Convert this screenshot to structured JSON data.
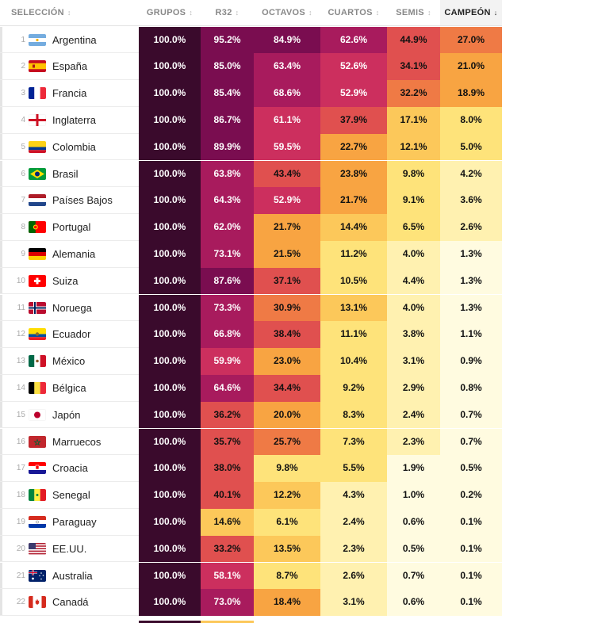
{
  "headers": {
    "team": "SELECCIÓN",
    "cols": [
      "GRUPOS",
      "R32",
      "OCTAVOS",
      "CUARTOS",
      "SEMIS",
      "CAMPEÓN"
    ],
    "sort_neutral": "↕",
    "sort_active": "↓"
  },
  "rows": [
    {
      "rank": "1",
      "flag": "argentina-flag-icon",
      "name": "Argentina",
      "v": [
        "100.0%",
        "95.2%",
        "84.9%",
        "62.6%",
        "44.9%",
        "27.0%"
      ]
    },
    {
      "rank": "2",
      "flag": "spain-flag-icon",
      "name": "España",
      "v": [
        "100.0%",
        "85.0%",
        "63.4%",
        "52.6%",
        "34.1%",
        "21.0%"
      ]
    },
    {
      "rank": "3",
      "flag": "france-flag-icon",
      "name": "Francia",
      "v": [
        "100.0%",
        "85.4%",
        "68.6%",
        "52.9%",
        "32.2%",
        "18.9%"
      ]
    },
    {
      "rank": "4",
      "flag": "england-flag-icon",
      "name": "Inglaterra",
      "v": [
        "100.0%",
        "86.7%",
        "61.1%",
        "37.9%",
        "17.1%",
        "8.0%"
      ]
    },
    {
      "rank": "5",
      "flag": "colombia-flag-icon",
      "name": "Colombia",
      "v": [
        "100.0%",
        "89.9%",
        "59.5%",
        "22.7%",
        "12.1%",
        "5.0%"
      ]
    },
    {
      "rank": "6",
      "flag": "brazil-flag-icon",
      "name": "Brasil",
      "v": [
        "100.0%",
        "63.8%",
        "43.4%",
        "23.8%",
        "9.8%",
        "4.2%"
      ]
    },
    {
      "rank": "7",
      "flag": "netherlands-flag-icon",
      "name": "Países Bajos",
      "v": [
        "100.0%",
        "64.3%",
        "52.9%",
        "21.7%",
        "9.1%",
        "3.6%"
      ]
    },
    {
      "rank": "8",
      "flag": "portugal-flag-icon",
      "name": "Portugal",
      "v": [
        "100.0%",
        "62.0%",
        "21.7%",
        "14.4%",
        "6.5%",
        "2.6%"
      ]
    },
    {
      "rank": "9",
      "flag": "germany-flag-icon",
      "name": "Alemania",
      "v": [
        "100.0%",
        "73.1%",
        "21.5%",
        "11.2%",
        "4.0%",
        "1.3%"
      ]
    },
    {
      "rank": "10",
      "flag": "switzerland-flag-icon",
      "name": "Suiza",
      "v": [
        "100.0%",
        "87.6%",
        "37.1%",
        "10.5%",
        "4.4%",
        "1.3%"
      ]
    },
    {
      "rank": "11",
      "flag": "norway-flag-icon",
      "name": "Noruega",
      "v": [
        "100.0%",
        "73.3%",
        "30.9%",
        "13.1%",
        "4.0%",
        "1.3%"
      ]
    },
    {
      "rank": "12",
      "flag": "ecuador-flag-icon",
      "name": "Ecuador",
      "v": [
        "100.0%",
        "66.8%",
        "38.4%",
        "11.1%",
        "3.8%",
        "1.1%"
      ]
    },
    {
      "rank": "13",
      "flag": "mexico-flag-icon",
      "name": "México",
      "v": [
        "100.0%",
        "59.9%",
        "23.0%",
        "10.4%",
        "3.1%",
        "0.9%"
      ]
    },
    {
      "rank": "14",
      "flag": "belgium-flag-icon",
      "name": "Bélgica",
      "v": [
        "100.0%",
        "64.6%",
        "34.4%",
        "9.2%",
        "2.9%",
        "0.8%"
      ]
    },
    {
      "rank": "15",
      "flag": "japan-flag-icon",
      "name": "Japón",
      "v": [
        "100.0%",
        "36.2%",
        "20.0%",
        "8.3%",
        "2.4%",
        "0.7%"
      ]
    },
    {
      "rank": "16",
      "flag": "morocco-flag-icon",
      "name": "Marruecos",
      "v": [
        "100.0%",
        "35.7%",
        "25.7%",
        "7.3%",
        "2.3%",
        "0.7%"
      ]
    },
    {
      "rank": "17",
      "flag": "croatia-flag-icon",
      "name": "Croacia",
      "v": [
        "100.0%",
        "38.0%",
        "9.8%",
        "5.5%",
        "1.9%",
        "0.5%"
      ]
    },
    {
      "rank": "18",
      "flag": "senegal-flag-icon",
      "name": "Senegal",
      "v": [
        "100.0%",
        "40.1%",
        "12.2%",
        "4.3%",
        "1.0%",
        "0.2%"
      ]
    },
    {
      "rank": "19",
      "flag": "paraguay-flag-icon",
      "name": "Paraguay",
      "v": [
        "100.0%",
        "14.6%",
        "6.1%",
        "2.4%",
        "0.6%",
        "0.1%"
      ]
    },
    {
      "rank": "20",
      "flag": "usa-flag-icon",
      "name": "EE.UU.",
      "v": [
        "100.0%",
        "33.2%",
        "13.5%",
        "2.3%",
        "0.5%",
        "0.1%"
      ]
    },
    {
      "rank": "21",
      "flag": "australia-flag-icon",
      "name": "Australia",
      "v": [
        "100.0%",
        "58.1%",
        "8.7%",
        "2.6%",
        "0.7%",
        "0.1%"
      ]
    },
    {
      "rank": "22",
      "flag": "canada-flag-icon",
      "name": "Canadá",
      "v": [
        "100.0%",
        "73.0%",
        "18.4%",
        "3.1%",
        "0.6%",
        "0.1%"
      ]
    }
  ],
  "colors": {
    "scale": [
      "#fffbe0",
      "#fff1b0",
      "#fee37a",
      "#fcc85a",
      "#f8a442",
      "#ef7a45",
      "#e0504f",
      "#cc2f5e",
      "#a81b5d",
      "#7a0d50",
      "#3a0a2c"
    ],
    "text_dark": "#111111",
    "text_light": "#ffffff"
  }
}
